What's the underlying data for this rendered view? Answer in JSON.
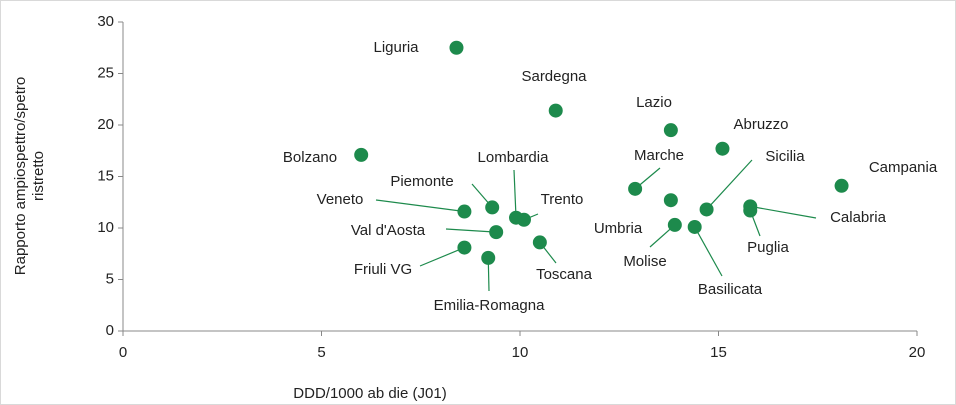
{
  "chart_data": {
    "type": "scatter",
    "x_label": "DDD/1000 ab die (J01)",
    "y_label": "Rapporto ampiospettro/spetro ristretto",
    "color": "#1d8a4c",
    "xlim": [
      0,
      20
    ],
    "xticks": [
      0,
      5,
      10,
      15,
      20
    ],
    "ylim": [
      0,
      30
    ],
    "yticks": [
      0,
      5,
      10,
      15,
      20,
      25,
      30
    ],
    "labels": [
      "Liguria",
      "Sardegna",
      "Bolzano",
      "Lazio",
      "Abruzzo",
      "Marche",
      "Campania",
      "Piemonte",
      "Lombardia",
      "Trento",
      "Veneto",
      "Val d'Aosta",
      "Toscana",
      "Friuli VG",
      "Emilia-Romagna",
      "Umbria",
      "Molise",
      "Basilicata",
      "Sicilia",
      "Puglia",
      "Calabria"
    ],
    "x": [
      8.4,
      10.9,
      6.0,
      13.8,
      15.1,
      12.9,
      18.1,
      9.3,
      9.9,
      10.1,
      8.6,
      9.4,
      10.5,
      8.6,
      9.2,
      13.8,
      13.9,
      14.4,
      14.7,
      15.8,
      15.8
    ],
    "values": [
      27.5,
      21.4,
      17.1,
      19.5,
      17.7,
      13.8,
      14.1,
      12.0,
      11.0,
      10.8,
      11.6,
      9.6,
      8.6,
      8.1,
      7.1,
      12.7,
      10.3,
      10.1,
      11.8,
      11.7,
      12.1
    ]
  }
}
